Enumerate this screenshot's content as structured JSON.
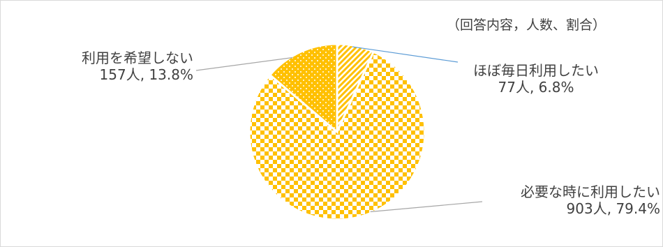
{
  "note": "（回答内容，人数、割合）",
  "colors": {
    "fill": "#ffc000",
    "accent": "#ffffff",
    "leader_blue": "#5b9bd5",
    "leader_gray": "#a6a6a6",
    "text": "#404040"
  },
  "chart_data": {
    "type": "pie",
    "title": "",
    "slices": [
      {
        "label": "ほぼ毎日利用したい",
        "count": "77人",
        "percent": "6.8%",
        "value": 6.8,
        "pattern": "diagonal-stripes"
      },
      {
        "label": "必要な時に利用したい",
        "count": "903人",
        "percent": "79.4%",
        "value": 79.4,
        "pattern": "checkerboard"
      },
      {
        "label": "利用を希望しない",
        "count": "157人",
        "percent": "13.8%",
        "value": 13.8,
        "pattern": "dotted"
      }
    ]
  }
}
